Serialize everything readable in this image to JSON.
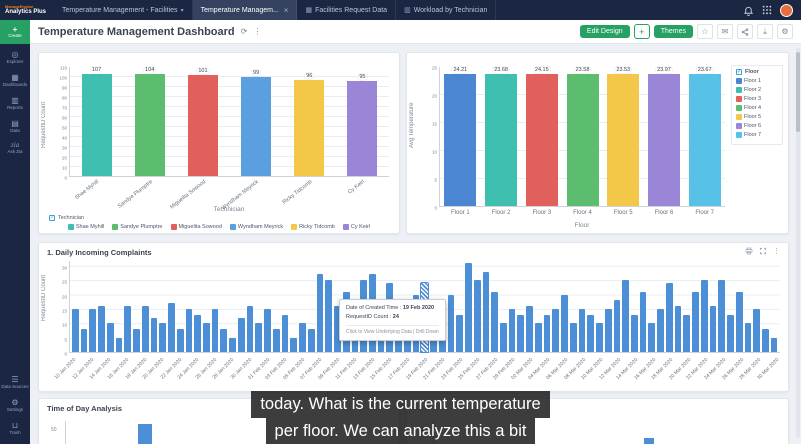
{
  "topbar": {
    "brand_line1": "ManageEngine",
    "brand_line2": "Analytics Plus",
    "tabs": [
      {
        "label": "Temperature Management - Facilities",
        "active": false,
        "caret": true
      },
      {
        "label": "Temperature Managem...",
        "active": true,
        "closable": true
      },
      {
        "label": "Facilities Request Data",
        "active": false,
        "icon": "table-icon"
      },
      {
        "label": "Workload by Technician",
        "active": false,
        "icon": "chart-icon"
      }
    ]
  },
  "sidebar": {
    "create": "Create",
    "items": [
      {
        "label": "Explorer",
        "icon": "explorer-icon"
      },
      {
        "label": "Dashboards",
        "icon": "dashboards-icon"
      },
      {
        "label": "Reports",
        "icon": "reports-icon"
      },
      {
        "label": "Data",
        "icon": "data-icon"
      },
      {
        "label": "Ask Zia",
        "icon": "zia-icon"
      }
    ],
    "bottom_items": [
      {
        "label": "Data Sources",
        "icon": "data-sources-icon"
      },
      {
        "label": "Settings",
        "icon": "settings-icon"
      },
      {
        "label": "Trash",
        "icon": "trash-icon"
      }
    ]
  },
  "header": {
    "title": "Temperature Management Dashboard",
    "buttons": {
      "edit_design": "Edit Design",
      "add": "+",
      "themes": "Themes"
    }
  },
  "caption": {
    "line1": "today. What is the current temperature",
    "line2": "per floor. We can analyze this a bit"
  },
  "chart_data": [
    {
      "id": "requests_by_technician",
      "type": "bar",
      "ylabel": "RequestID Count",
      "xlabel": "Technician",
      "categories": [
        "Shae Myhill",
        "Sandye Plumptre",
        "Miguelita Sowood",
        "Wyndham Meyrick",
        "Ricky Tidcomb",
        "Cy Keirl"
      ],
      "values": [
        107,
        104,
        101,
        99,
        96,
        95
      ],
      "colors": [
        "#3FBFB0",
        "#5CBD6F",
        "#E2605C",
        "#5C9FE0",
        "#F3C748",
        "#9B85D6"
      ],
      "ylim": [
        0,
        110
      ],
      "ytick_step": 10,
      "value_decimals": 0,
      "legend_title": "Technician",
      "legend_position": "bottom",
      "grid": true
    },
    {
      "id": "avg_temperature_by_floor",
      "type": "bar",
      "ylabel": "Avg Temperature",
      "xlabel": "Floor",
      "categories": [
        "Floor 1",
        "Floor 2",
        "Floor 3",
        "Floor 4",
        "Floor 5",
        "Floor 6",
        "Floor 7"
      ],
      "values": [
        24.21,
        23.68,
        24.15,
        23.58,
        23.53,
        23.97,
        23.67
      ],
      "colors": [
        "#4A86D1",
        "#3FBFB0",
        "#E2605C",
        "#5CBD6F",
        "#F3C748",
        "#9B85D6",
        "#57C1E8"
      ],
      "ylim": [
        0,
        25
      ],
      "ytick_step": 5,
      "value_decimals": 2,
      "legend_title": "Floor",
      "legend_position": "right",
      "grid": true
    },
    {
      "id": "daily_incoming_complaints",
      "type": "bar",
      "title": "1. Daily Incoming Complaints",
      "ylabel": "RequestID Count",
      "bar_color": "#4D8FD6",
      "ylim": [
        0,
        32
      ],
      "yticks": [
        0,
        5,
        10,
        15,
        20,
        25,
        30
      ],
      "x_labels": [
        "10 Jan 2020",
        "12 Jan 2020",
        "14 Jan 2020",
        "16 Jan 2020",
        "18 Jan 2020",
        "20 Jan 2020",
        "22 Jan 2020",
        "24 Jan 2020",
        "26 Jan 2020",
        "28 Jan 2020",
        "30 Jan 2020",
        "01 Feb 2020",
        "03 Feb 2020",
        "05 Feb 2020",
        "07 Feb 2020",
        "09 Feb 2020",
        "11 Feb 2020",
        "13 Feb 2020",
        "15 Feb 2020",
        "17 Feb 2020",
        "19 Feb 2020",
        "21 Feb 2020",
        "23 Feb 2020",
        "25 Feb 2020",
        "27 Feb 2020",
        "29 Feb 2020",
        "02 Mar 2020",
        "04 Mar 2020",
        "06 Mar 2020",
        "08 Mar 2020",
        "10 Mar 2020",
        "12 Mar 2020",
        "14 Mar 2020",
        "16 Mar 2020",
        "18 Mar 2020",
        "20 Mar 2020",
        "22 Mar 2020",
        "24 Mar 2020",
        "26 Mar 2020",
        "28 Mar 2020",
        "30 Mar 2020"
      ],
      "values": [
        15,
        8,
        15,
        16,
        10,
        5,
        16,
        8,
        16,
        12,
        10,
        17,
        8,
        15,
        13,
        10,
        15,
        8,
        5,
        12,
        16,
        10,
        15,
        8,
        13,
        5,
        10,
        8,
        27,
        25,
        16,
        21,
        18,
        25,
        27,
        16,
        24,
        16,
        10,
        20,
        24,
        18,
        15,
        20,
        13,
        31,
        25,
        28,
        21,
        10,
        15,
        13,
        16,
        10,
        13,
        15,
        20,
        10,
        15,
        13,
        10,
        15,
        18,
        25,
        13,
        21,
        10,
        15,
        24,
        16,
        13,
        21,
        25,
        16,
        25,
        13,
        21,
        10,
        15,
        8,
        5
      ],
      "highlight_index": 40,
      "tooltip": {
        "rows": [
          {
            "label": "Date of Created Time",
            "value": "19 Feb 2020"
          },
          {
            "label": "RequestID Count",
            "value": "24"
          }
        ],
        "footer": "Click to View Underlying Data | Drill Down"
      },
      "grid": true
    },
    {
      "id": "time_of_day_analysis",
      "type": "bar",
      "title": "Time of Day Analysis",
      "partial": true,
      "visible_ytick": "50"
    },
    {
      "id": "bottom_right_chart",
      "type": "bar",
      "partial": true,
      "visible_ytick": "150"
    }
  ]
}
